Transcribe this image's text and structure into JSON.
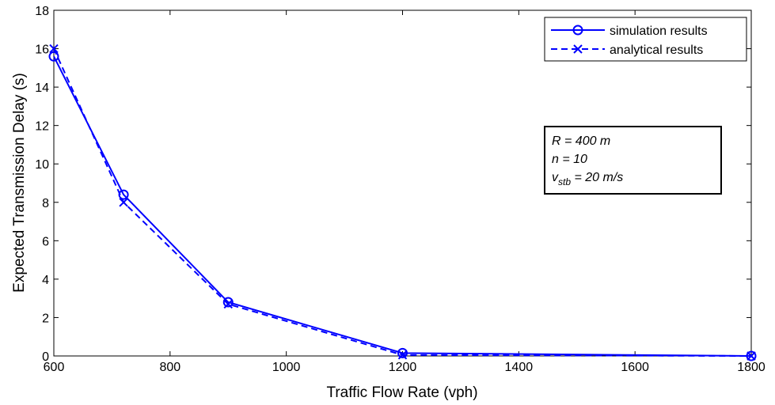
{
  "chart_data": {
    "type": "line",
    "title": "",
    "xlabel": "Traffic Flow Rate (vph)",
    "ylabel": "Expected Transmission Delay (s)",
    "xlim": [
      600,
      1800
    ],
    "ylim": [
      0,
      18
    ],
    "xticks": [
      600,
      800,
      1000,
      1200,
      1400,
      1600,
      1800
    ],
    "yticks": [
      0,
      2,
      4,
      6,
      8,
      10,
      12,
      14,
      16,
      18
    ],
    "grid": false,
    "legend_position": "top-right",
    "series": [
      {
        "name": "simulation results",
        "color": "#0000ff",
        "line_style": "solid",
        "marker": "circle",
        "x": [
          600,
          720,
          900,
          1200,
          1800
        ],
        "y": [
          15.6,
          8.4,
          2.8,
          0.15,
          0.0
        ]
      },
      {
        "name": "analytical results",
        "color": "#0000ff",
        "line_style": "dashed",
        "marker": "x",
        "x": [
          600,
          720,
          900,
          1200,
          1800
        ],
        "y": [
          16.0,
          8.0,
          2.7,
          0.05,
          0.0
        ]
      }
    ],
    "annotation": {
      "line1": "R = 400 m",
      "line2": "n = 10",
      "line3_var": "v",
      "line3_sub": "stb",
      "line3_rest": " = 20 m/s"
    }
  }
}
